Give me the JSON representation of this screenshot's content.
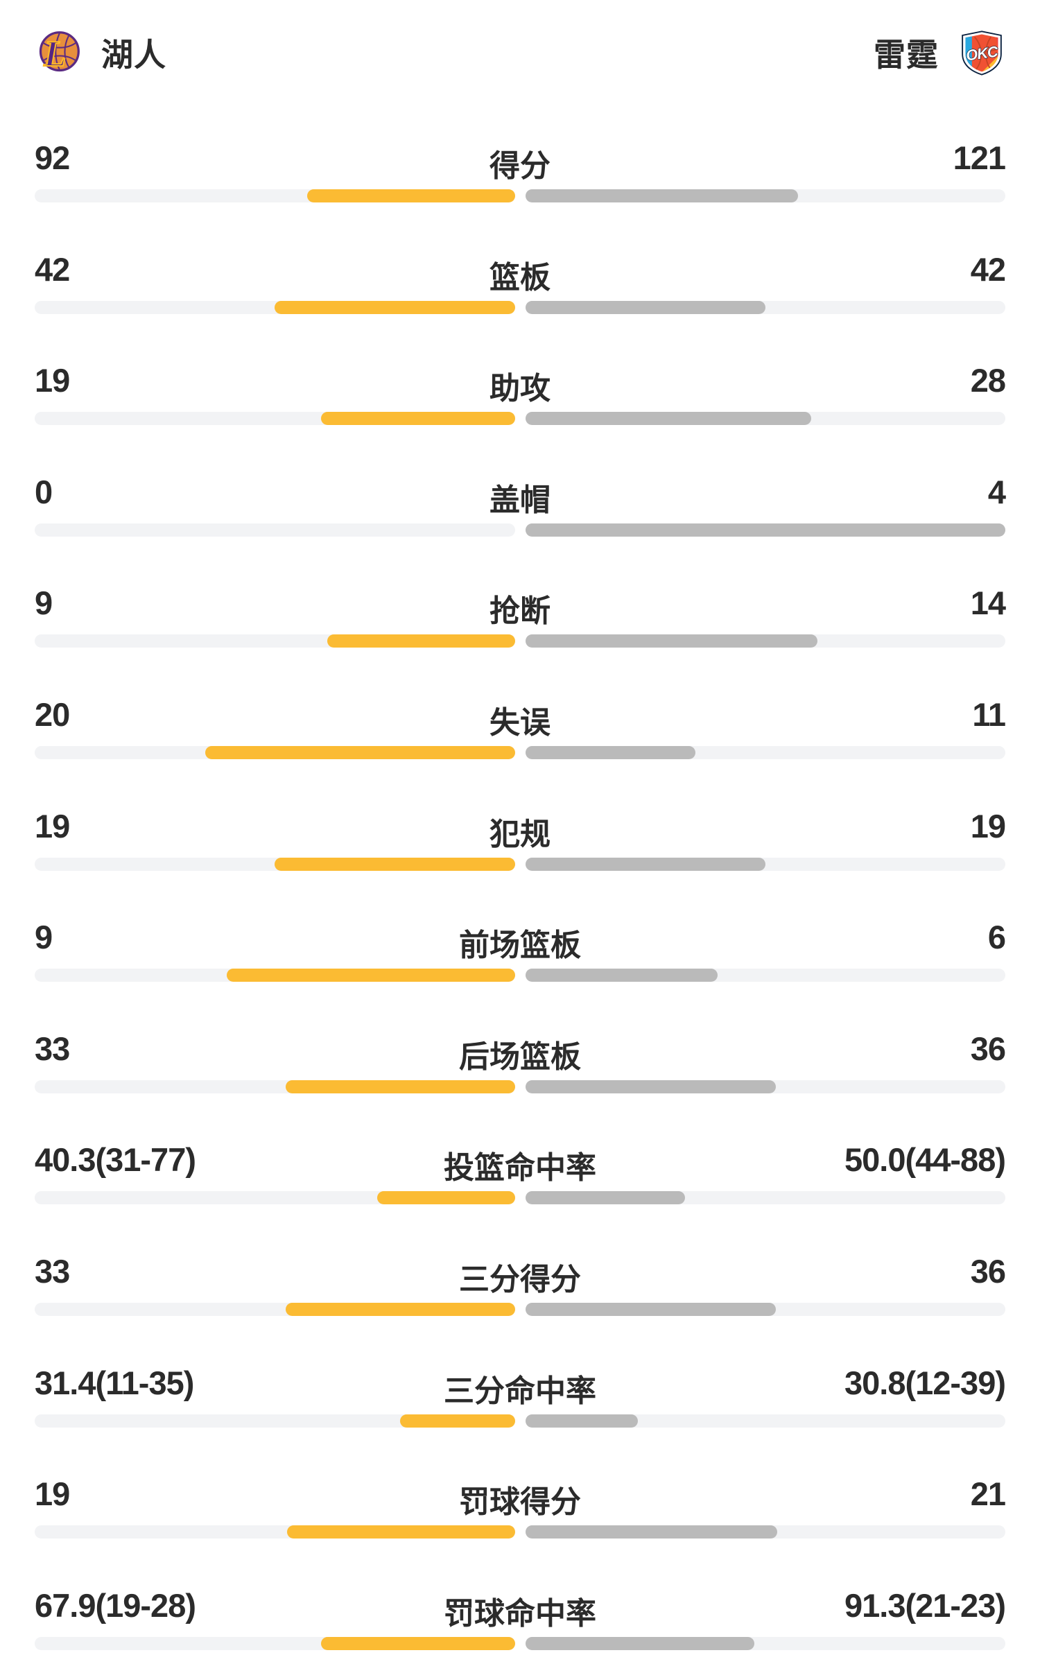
{
  "colors": {
    "text": "#2b2b2b",
    "track": "#f2f3f5",
    "home_bar": "#fbbb33",
    "away_bar": "#bababa",
    "lakers_purple": "#552583",
    "lakers_gold": "#fdb927",
    "lakers_orange": "#e78f3c",
    "okc_navy": "#0b2240",
    "okc_blue": "#29a8e0",
    "okc_orange": "#f05133",
    "okc_yellow": "#fdbb30",
    "okc_red": "#ed3e49"
  },
  "header": {
    "home": {
      "name": "湖人",
      "logo": "lakers-logo"
    },
    "away": {
      "name": "雷霆",
      "logo": "okc-thunder-logo"
    }
  },
  "stats": [
    {
      "label": "得分",
      "home": "92",
      "away": "121",
      "home_pct": 43.2,
      "away_pct": 56.8
    },
    {
      "label": "篮板",
      "home": "42",
      "away": "42",
      "home_pct": 50.0,
      "away_pct": 50.0
    },
    {
      "label": "助攻",
      "home": "19",
      "away": "28",
      "home_pct": 40.4,
      "away_pct": 59.6
    },
    {
      "label": "盖帽",
      "home": "0",
      "away": "4",
      "home_pct": 0,
      "away_pct": 100
    },
    {
      "label": "抢断",
      "home": "9",
      "away": "14",
      "home_pct": 39.1,
      "away_pct": 60.9
    },
    {
      "label": "失误",
      "home": "20",
      "away": "11",
      "home_pct": 64.5,
      "away_pct": 35.5
    },
    {
      "label": "犯规",
      "home": "19",
      "away": "19",
      "home_pct": 50.0,
      "away_pct": 50.0
    },
    {
      "label": "前场篮板",
      "home": "9",
      "away": "6",
      "home_pct": 60.0,
      "away_pct": 40.0
    },
    {
      "label": "后场篮板",
      "home": "33",
      "away": "36",
      "home_pct": 47.8,
      "away_pct": 52.2
    },
    {
      "label": "投篮命中率",
      "home": "40.3(31-77)",
      "away": "50.0(44-88)",
      "home_pct": 28.7,
      "away_pct": 33.3
    },
    {
      "label": "三分得分",
      "home": "33",
      "away": "36",
      "home_pct": 47.8,
      "away_pct": 52.2
    },
    {
      "label": "三分命中率",
      "home": "31.4(11-35)",
      "away": "30.8(12-39)",
      "home_pct": 23.9,
      "away_pct": 23.5
    },
    {
      "label": "罚球得分",
      "home": "19",
      "away": "21",
      "home_pct": 47.5,
      "away_pct": 52.5
    },
    {
      "label": "罚球命中率",
      "home": "67.9(19-28)",
      "away": "91.3(21-23)",
      "home_pct": 40.4,
      "away_pct": 47.7
    }
  ]
}
